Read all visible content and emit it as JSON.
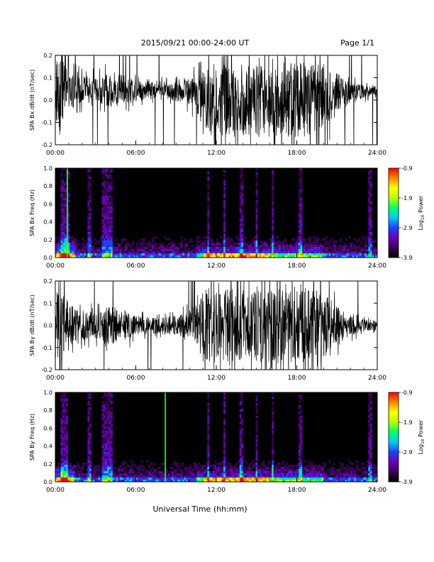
{
  "header": {
    "date_range": "2015/09/21  00:00-24:00 UT",
    "page": "Page 1/1"
  },
  "xaxis": {
    "label": "Universal Time (hh:mm)",
    "ticks": [
      "00:00",
      "06:00",
      "12:00",
      "18:00",
      "24:00"
    ]
  },
  "colors": {
    "trace": "#000000",
    "spectrogram_background": "#000000",
    "colormap": [
      "#000000",
      "#3a005a",
      "#6a00b8",
      "#1f3fff",
      "#00c8ff",
      "#00ff66",
      "#b8ff00",
      "#ffff00",
      "#ff8800",
      "#ff0000"
    ]
  },
  "chart_data": [
    {
      "type": "line",
      "ylabel": "SPA Bx dB/dt (nT/sec)",
      "xlim": [
        0,
        24
      ],
      "ylim": [
        -0.2,
        0.2
      ],
      "yticks": [
        "0.2",
        "0.1",
        "0.0",
        "-0.1",
        "-0.2"
      ],
      "envelope": {
        "hours": [
          0,
          0.5,
          1,
          1.5,
          2,
          3,
          4,
          5,
          6,
          7,
          8,
          9,
          10,
          10.5,
          11,
          11.5,
          12,
          13,
          14,
          15,
          16,
          17,
          18,
          19,
          20,
          21,
          22,
          23,
          24
        ],
        "half_amplitude": [
          0.22,
          0.2,
          0.12,
          0.1,
          0.08,
          0.07,
          0.1,
          0.09,
          0.06,
          0.05,
          0.05,
          0.06,
          0.08,
          0.1,
          0.2,
          0.22,
          0.22,
          0.22,
          0.22,
          0.22,
          0.22,
          0.22,
          0.22,
          0.22,
          0.2,
          0.12,
          0.06,
          0.04,
          0.03
        ],
        "mean": [
          0.05,
          0.05,
          0.05,
          0.04,
          0.05,
          0.05,
          0.04,
          0.05,
          0.04,
          0.05,
          0.05,
          0.04,
          0.04,
          0.03,
          0.0,
          0.0,
          0.0,
          0.0,
          0.0,
          0.0,
          0.0,
          0.0,
          0.0,
          0.0,
          0.02,
          0.03,
          0.03,
          0.04,
          0.04
        ]
      }
    },
    {
      "type": "heatmap",
      "ylabel": "SPA Bx Freq (Hz)",
      "xlim": [
        0,
        24
      ],
      "ylim": [
        0,
        1.0
      ],
      "yticks": [
        "1.0",
        "0.8",
        "0.6",
        "0.4",
        "0.2",
        "0.0"
      ],
      "colorbar": {
        "label": "Log10 Power",
        "label_main": "Log",
        "label_sub": "10",
        "label_tail": " Power",
        "range": [
          -3.9,
          -0.9
        ],
        "ticks": [
          "-0.9",
          "-1.9",
          "-2.9",
          "-3.9"
        ]
      },
      "vertical_lines_hours": [
        0.5,
        0.8,
        1.0,
        2.5,
        3.6,
        3.75,
        4.0,
        4.2,
        11.4,
        12.6,
        13.9,
        15.0,
        16.2,
        18.3,
        23.5
      ],
      "bright_line_hours": [
        0.9
      ]
    },
    {
      "type": "line",
      "ylabel": "SPA By dB/dt (nT/sec)",
      "xlim": [
        0,
        24
      ],
      "ylim": [
        -0.2,
        0.2
      ],
      "yticks": [
        "0.2",
        "0.1",
        "0.0",
        "-0.1",
        "-0.2"
      ],
      "envelope": {
        "hours": [
          0,
          0.5,
          1,
          1.5,
          2,
          3,
          4,
          5,
          6,
          7,
          8,
          9,
          10,
          10.5,
          11,
          11.5,
          12,
          13,
          14,
          15,
          16,
          17,
          18,
          19,
          20,
          21,
          22,
          23,
          24
        ],
        "half_amplitude": [
          0.22,
          0.2,
          0.14,
          0.1,
          0.09,
          0.08,
          0.12,
          0.1,
          0.06,
          0.05,
          0.05,
          0.06,
          0.08,
          0.12,
          0.2,
          0.22,
          0.22,
          0.22,
          0.22,
          0.22,
          0.22,
          0.22,
          0.22,
          0.22,
          0.2,
          0.12,
          0.06,
          0.04,
          0.03
        ],
        "mean": [
          0.0,
          0.0,
          0.0,
          0.0,
          0.0,
          0.0,
          0.0,
          0.0,
          0.0,
          0.0,
          0.0,
          0.0,
          0.0,
          0.0,
          0.0,
          0.0,
          0.0,
          0.0,
          0.0,
          0.0,
          0.0,
          0.0,
          0.0,
          0.0,
          0.0,
          0.0,
          0.0,
          0.0,
          0.0
        ]
      }
    },
    {
      "type": "heatmap",
      "ylabel": "SPA By Freq (Hz)",
      "xlim": [
        0,
        24
      ],
      "ylim": [
        0,
        1.0
      ],
      "yticks": [
        "1.0",
        "0.8",
        "0.6",
        "0.4",
        "0.2",
        "0.0"
      ],
      "colorbar": {
        "label": "Log10 Power",
        "label_main": "Log",
        "label_sub": "10",
        "label_tail": " Power",
        "range": [
          -3.9,
          -0.9
        ],
        "ticks": [
          "-0.9",
          "-1.9",
          "-2.9",
          "-3.9"
        ]
      },
      "vertical_lines_hours": [
        0.5,
        0.8,
        2.5,
        3.6,
        3.75,
        4.0,
        4.2,
        11.4,
        12.6,
        13.9,
        15.0,
        16.2,
        18.3,
        23.5
      ],
      "bright_line_hours": [
        8.2
      ]
    }
  ]
}
